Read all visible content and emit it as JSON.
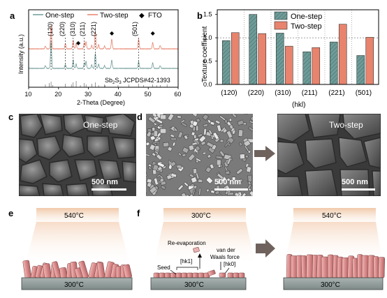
{
  "panels": {
    "a": {
      "letter": "a",
      "legend": [
        "One-step",
        "Two-step",
        "FTO"
      ],
      "peak_labels": [
        "(120)",
        "(220)",
        "(310)",
        "(211)",
        "(221)",
        "(501)"
      ],
      "reference_label": "Sb2S3 JCPDS#42-1393",
      "reference_label_parts": {
        "base": "Sb",
        "sub1": "2",
        "mid": "S",
        "sub2": "3",
        "tail": " JCPDS#42-1393"
      },
      "xlabel": "2-Theta (Degree)",
      "ylabel": "Intensity (a.u.)",
      "xticks": [
        "10",
        "20",
        "30",
        "40",
        "50",
        "60"
      ]
    },
    "b": {
      "letter": "b",
      "ylabel": "Texture coefficient",
      "xlabel": "(hkl)",
      "yticks": [
        "0.0",
        "0.5",
        "1.0",
        "1.5"
      ]
    },
    "c": {
      "letter": "c",
      "label": "One-step",
      "scale": "500 nm"
    },
    "d": {
      "letter": "d",
      "label": "Two-step",
      "scale_left": "500 nm",
      "scale_right": "500 nm"
    },
    "e": {
      "letter": "e",
      "top_temp": "540°C",
      "bottom_temp": "300°C"
    },
    "f": {
      "letter": "f",
      "left_top_temp": "300°C",
      "left_bottom_temp": "300°C",
      "right_top_temp": "540°C",
      "right_bottom_temp": "300°C",
      "annotations": {
        "reevaporation": "Re-evaporation",
        "vdw1": "van der",
        "vdw2": "Waals force",
        "seed": "Seed",
        "hk1": "[hk1]",
        "hk0": "[hk0]"
      }
    }
  },
  "colors": {
    "one_step": "#6f9c98",
    "two_step": "#e8836d",
    "fto_marker": "#000000"
  },
  "chart_data": [
    {
      "type": "line",
      "title": "",
      "xlabel": "2-Theta (Degree)",
      "ylabel": "Intensity (a.u.)",
      "xlim": [
        10,
        60
      ],
      "series": [
        {
          "name": "One-step",
          "peaks_2theta": [
            15.6,
            17.5,
            22.3,
            24.9,
            25.9,
            28.6,
            29.2,
            31.1,
            32.3,
            33.4,
            35.4,
            37.8,
            46.8,
            51.5,
            54.0
          ]
        },
        {
          "name": "Two-step",
          "peaks_2theta": [
            15.6,
            17.5,
            22.3,
            24.9,
            25.9,
            28.6,
            29.2,
            31.1,
            32.3,
            33.4,
            35.4,
            37.8,
            46.8,
            51.5,
            54.0
          ]
        }
      ],
      "marked_peaks_2theta": {
        "(120)": 17.5,
        "(220)": 22.3,
        "(310)": 24.9,
        "(211)": 28.6,
        "(221)": 32.3,
        "(501)": 46.8
      },
      "fto_peaks_2theta": [
        26.6,
        37.8,
        51.5
      ],
      "reference_sticks_2theta": [
        15.6,
        16.9,
        17.5,
        18.1,
        22.3,
        24.3,
        24.9,
        25.9,
        27.3,
        28.6,
        29.2,
        31.1,
        32.3,
        33.4,
        35.4,
        35.6,
        39.9,
        43.5,
        46.8,
        48.4,
        51.5,
        52.8,
        54.0,
        56.3
      ]
    },
    {
      "type": "bar",
      "title": "",
      "xlabel": "(hkl)",
      "ylabel": "Texture coefficient",
      "ylim": [
        0,
        1.6
      ],
      "categories": [
        "(120)",
        "(220)",
        "(310)",
        "(211)",
        "(221)",
        "(501)"
      ],
      "reference_line": 1.0,
      "grid": false,
      "legend": "top-right",
      "series": [
        {
          "name": "One-step",
          "values": [
            0.94,
            1.5,
            1.1,
            0.7,
            0.91,
            0.62
          ]
        },
        {
          "name": "Two-step",
          "values": [
            1.11,
            1.09,
            0.82,
            0.79,
            1.29,
            1.01
          ]
        }
      ]
    }
  ]
}
